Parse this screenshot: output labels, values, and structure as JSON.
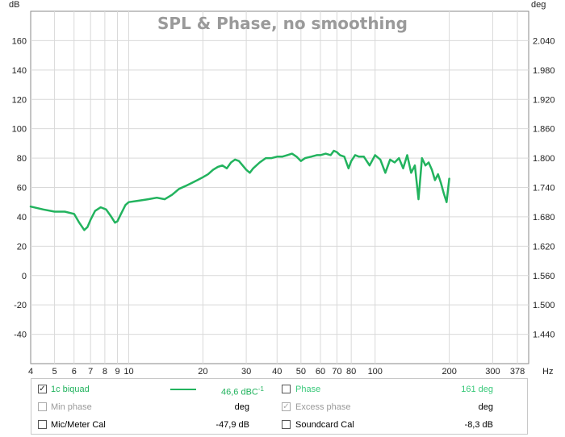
{
  "chart_data": {
    "type": "line",
    "title": "SPL & Phase, no smoothing",
    "ylabel": "dB",
    "y2label": "deg",
    "xunit": "Hz",
    "xscale": "log",
    "xlim": [
      4,
      420
    ],
    "ylim": [
      -60,
      180
    ],
    "y2lim": [
      1.38,
      2.1
    ],
    "grid": true,
    "x_ticks": [
      4,
      5,
      6,
      7,
      8,
      9,
      10,
      20,
      30,
      40,
      50,
      60,
      70,
      80,
      100,
      200,
      300,
      378
    ],
    "x_tick_labels": [
      "4",
      "5",
      "6",
      "7",
      "8",
      "9",
      "10",
      "20",
      "30",
      "40",
      "50",
      "60",
      "70",
      "80",
      "100",
      "200",
      "300",
      "378"
    ],
    "y_ticks": [
      160,
      140,
      120,
      100,
      80,
      60,
      40,
      20,
      0,
      -20,
      -40
    ],
    "y_tick_labels": [
      "160",
      "140",
      "120",
      "100",
      "80",
      "60",
      "40",
      "20",
      "0",
      "-20",
      "-40"
    ],
    "y2_ticks": [
      2.04,
      1.98,
      1.92,
      1.86,
      1.8,
      1.74,
      1.68,
      1.62,
      1.56,
      1.5,
      1.44
    ],
    "y2_tick_labels": [
      "2.040",
      "1.980",
      "1.920",
      "1.860",
      "1.800",
      "1.740",
      "1.680",
      "1.620",
      "1.560",
      "1.500",
      "1.440"
    ],
    "series": [
      {
        "name": "1c biquad",
        "color": "#22b35e",
        "x": [
          4,
          4.5,
          5,
          5.5,
          6,
          6.3,
          6.6,
          6.8,
          7,
          7.3,
          7.7,
          8.1,
          8.5,
          8.8,
          9,
          9.3,
          9.7,
          10,
          11,
          12,
          13,
          14,
          15,
          16,
          17,
          18,
          19,
          20,
          21,
          22,
          23,
          24,
          25,
          26,
          27,
          28,
          29,
          30,
          31,
          32,
          34,
          36,
          38,
          40,
          42,
          44,
          46,
          48,
          50,
          52,
          55,
          58,
          60,
          63,
          66,
          68,
          70,
          72,
          75,
          78,
          80,
          83,
          86,
          90,
          95,
          100,
          105,
          110,
          115,
          120,
          125,
          130,
          135,
          140,
          145,
          150,
          155,
          160,
          165,
          170,
          175,
          180,
          185,
          190,
          195,
          200
        ],
        "values": [
          47,
          45,
          43.5,
          43.5,
          42,
          36,
          31,
          33,
          38,
          44,
          46.5,
          45,
          40,
          36,
          37,
          42,
          48,
          50,
          51,
          52,
          53,
          52,
          55,
          59,
          61,
          63,
          65,
          67,
          69,
          72,
          74,
          75,
          73,
          77,
          79,
          78,
          75,
          72,
          70,
          73,
          77,
          80,
          80,
          81,
          81,
          82,
          83,
          81,
          78,
          80,
          81,
          82,
          82,
          83,
          82,
          85,
          84,
          82,
          81,
          73,
          78,
          82,
          81,
          81,
          75,
          82,
          79,
          70,
          79,
          77,
          80,
          73,
          82,
          70,
          75,
          52,
          80,
          75,
          77,
          72,
          65,
          69,
          63,
          56,
          50,
          66
        ]
      }
    ]
  },
  "legend": {
    "row1": {
      "name": "1c biquad",
      "value": "46,6 dBC",
      "value_sup": "-1",
      "name2": "Phase",
      "value2": "161 deg"
    },
    "row2": {
      "name": "Min phase",
      "value": "deg",
      "name2": "Excess phase",
      "value2": "deg"
    },
    "row3": {
      "name": "Mic/Meter Cal",
      "value": "-47,9 dB",
      "name2": "Soundcard Cal",
      "value2": "-8,3 dB"
    },
    "check_mark": "✓",
    "spl_color": "#22b35e",
    "phase_color": "#39c97a",
    "disabled_color": "#9a9a9a"
  }
}
